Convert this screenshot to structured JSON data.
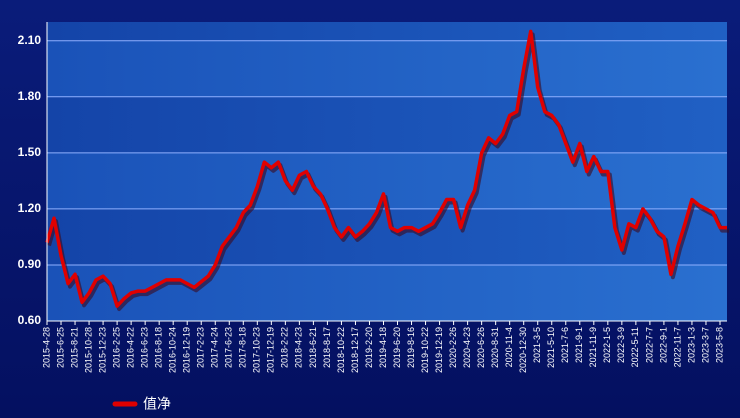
{
  "chart_data": {
    "type": "line",
    "categories": [
      "2015-4-28",
      null,
      "2015-6-25",
      null,
      "2015-8-21",
      null,
      "2015-10-28",
      null,
      "2015-12-23",
      null,
      "2016-2-25",
      null,
      "2016-4-22",
      null,
      "2016-6-23",
      null,
      "2016-8-18",
      null,
      "2016-10-24",
      null,
      "2016-12-19",
      null,
      "2017-2-23",
      null,
      "2017-4-24",
      null,
      "2017-6-23",
      null,
      "2017-8-18",
      null,
      "2017-10-23",
      null,
      "2017-12-19",
      null,
      "2018-2-22",
      null,
      "2018-4-23",
      null,
      "2018-6-21",
      null,
      "2018-8-17",
      null,
      "2018-10-22",
      null,
      "2018-12-17",
      null,
      "2019-2-20",
      null,
      "2019-4-18",
      null,
      "2019-6-20",
      null,
      "2019-8-16",
      null,
      "2019-10-22",
      null,
      "2019-12-19",
      null,
      "2020-2-26",
      null,
      "2020-4-23",
      null,
      "2020-6-26",
      null,
      "2020-8-31",
      null,
      "2020-11-4",
      null,
      "2020-12-30",
      null,
      "2021-3-5",
      null,
      "2021-5-10",
      null,
      "2021-7-6",
      null,
      "2021-9-1",
      null,
      "2021-11-9",
      null,
      "2022-1-5",
      null,
      "2022-3-9",
      null,
      "2022-5-11",
      null,
      "2022-7-7",
      null,
      "2022-9-1",
      null,
      "2022-11-7",
      null,
      "2023-1-3",
      null,
      "2023-3-7",
      null,
      "2023-5-8",
      null
    ],
    "series": [
      {
        "name": "值净",
        "color": "#e00000",
        "values": [
          1.02,
          1.15,
          0.95,
          0.8,
          0.85,
          0.7,
          0.75,
          0.82,
          0.84,
          0.8,
          0.68,
          0.72,
          0.75,
          0.76,
          0.76,
          0.78,
          0.8,
          0.82,
          0.82,
          0.82,
          0.8,
          0.78,
          0.81,
          0.84,
          0.9,
          1.0,
          1.05,
          1.1,
          1.18,
          1.22,
          1.32,
          1.45,
          1.42,
          1.45,
          1.35,
          1.3,
          1.38,
          1.4,
          1.32,
          1.28,
          1.2,
          1.1,
          1.05,
          1.1,
          1.05,
          1.08,
          1.12,
          1.18,
          1.28,
          1.1,
          1.08,
          1.1,
          1.1,
          1.08,
          1.1,
          1.12,
          1.18,
          1.25,
          1.25,
          1.1,
          1.22,
          1.3,
          1.5,
          1.58,
          1.55,
          1.6,
          1.7,
          1.72,
          1.95,
          2.15,
          1.85,
          1.72,
          1.7,
          1.65,
          1.55,
          1.45,
          1.55,
          1.4,
          1.48,
          1.4,
          1.4,
          1.1,
          0.98,
          1.12,
          1.1,
          1.2,
          1.15,
          1.08,
          1.05,
          0.85,
          1.0,
          1.12,
          1.25,
          1.22,
          1.2,
          1.18,
          1.1,
          1.1
        ]
      }
    ],
    "ylim": [
      0.6,
      2.2
    ],
    "yticks": [
      {
        "value": 0.6,
        "label": "0.60"
      },
      {
        "value": 0.9,
        "label": "0.90"
      },
      {
        "value": 1.2,
        "label": "1.20"
      },
      {
        "value": 1.5,
        "label": "1.50"
      },
      {
        "value": 1.8,
        "label": "1.80"
      },
      {
        "value": 2.1,
        "label": "2.10"
      }
    ],
    "grid": true
  }
}
